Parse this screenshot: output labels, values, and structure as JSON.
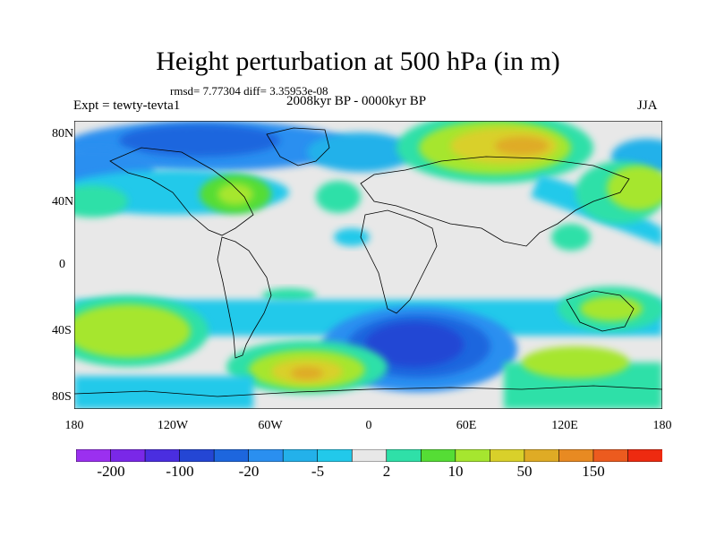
{
  "title": "Height perturbation at 500 hPa (in m)",
  "stats": "rmsd= 7.77304 diff= 3.35953e-08",
  "expt": "Expt = tewty-tevta1",
  "period": "2008kyr BP - 0000kyr BP",
  "season": "JJA",
  "lat_labels": [
    "80N",
    "40N",
    "0",
    "40S",
    "80S"
  ],
  "lon_labels": [
    "180",
    "120W",
    "60W",
    "0",
    "60E",
    "120E",
    "180"
  ],
  "colorbar": {
    "colors": [
      "#9b30f0",
      "#7a28e8",
      "#4a2ee0",
      "#2446d4",
      "#1d66de",
      "#2a8ff0",
      "#23b1ea",
      "#22c9ea",
      "#e8e8e8",
      "#2fe0a8",
      "#55dd35",
      "#a6e62f",
      "#d9d02a",
      "#dfab25",
      "#e88a22",
      "#ec5b1f",
      "#ee2a10"
    ],
    "labels": [
      "-200",
      "-100",
      "-20",
      "-5",
      "2",
      "10",
      "50",
      "150"
    ]
  }
}
